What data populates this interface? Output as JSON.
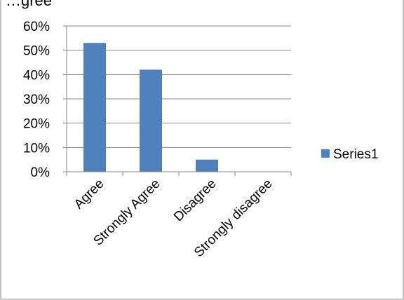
{
  "chart_data": {
    "type": "bar",
    "categories": [
      "Agree",
      "Strongly Agree",
      "Disagree",
      "Strongly disagree"
    ],
    "series": [
      {
        "name": "Series1",
        "values": [
          0.53,
          0.42,
          0.05,
          0.0
        ],
        "color": "#4f81bd"
      }
    ],
    "ylim": [
      0,
      0.6
    ],
    "yticks": [
      "0%",
      "10%",
      "20%",
      "30%",
      "40%",
      "50%",
      "60%"
    ],
    "grid": true,
    "legend_position": "right",
    "title_fragment": "…gree"
  }
}
